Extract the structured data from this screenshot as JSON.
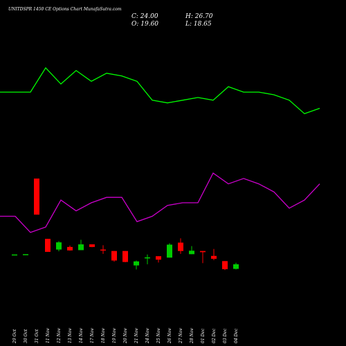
{
  "chart_data": {
    "type": "candlestick",
    "title": "UNITDSPR 1450  CE Options Chart MunafaSutra.com",
    "ohlc_text": {
      "close": "C: 24.00",
      "high": "H: 26.70",
      "open": "O: 19.60",
      "low": "L: 18.65"
    },
    "dates": [
      "29 Oct",
      "30 Oct",
      "31 Oct",
      "11 Nov",
      "12 Nov",
      "13 Nov",
      "14 Nov",
      "17 Nov",
      "18 Nov",
      "19 Nov",
      "20 Nov",
      "21 Nov",
      "24 Nov",
      "25 Nov",
      "26 Nov",
      "27 Nov",
      "28 Nov",
      "01 Dec",
      "02 Dec",
      "03 Dec",
      "04 Dec"
    ],
    "candles": [
      {
        "o": 21.7,
        "h": 21.7,
        "l": 21.7,
        "c": 21.7,
        "color": "#00cc00"
      },
      {
        "o": 21.8,
        "h": 21.8,
        "l": 21.8,
        "c": 21.8,
        "color": "#00cc00"
      },
      {
        "o": 48.0,
        "h": 48.0,
        "l": 35.5,
        "c": 35.5,
        "color": "#ff0000"
      },
      {
        "o": 27.1,
        "h": 27.1,
        "l": 22.6,
        "c": 22.6,
        "color": "#ff0000"
      },
      {
        "o": 23.4,
        "h": 26.3,
        "l": 22.8,
        "c": 25.9,
        "color": "#00cc00"
      },
      {
        "o": 24.3,
        "h": 24.8,
        "l": 23.0,
        "c": 23.1,
        "color": "#ff0000"
      },
      {
        "o": 23.2,
        "h": 26.8,
        "l": 23.2,
        "c": 25.2,
        "color": "#00cc00"
      },
      {
        "o": 25.2,
        "h": 25.2,
        "l": 24.2,
        "c": 24.3,
        "color": "#ff0000"
      },
      {
        "o": 23.4,
        "h": 24.9,
        "l": 21.9,
        "c": 23.1,
        "color": "#ff0000"
      },
      {
        "o": 22.9,
        "h": 22.9,
        "l": 19.2,
        "c": 19.6,
        "color": "#ff0000"
      },
      {
        "o": 22.9,
        "h": 22.9,
        "l": 19.0,
        "c": 19.1,
        "color": "#ff0000"
      },
      {
        "o": 17.9,
        "h": 19.6,
        "l": 16.5,
        "c": 19.3,
        "color": "#00cc00"
      },
      {
        "o": 20.5,
        "h": 21.7,
        "l": 18.3,
        "c": 20.7,
        "color": "#00cc00"
      },
      {
        "o": 21.1,
        "h": 21.1,
        "l": 18.9,
        "c": 19.9,
        "color": "#ff0000"
      },
      {
        "o": 20.6,
        "h": 25.6,
        "l": 20.6,
        "c": 25.1,
        "color": "#00cc00"
      },
      {
        "o": 25.8,
        "h": 27.3,
        "l": 21.9,
        "c": 22.9,
        "color": "#ff0000"
      },
      {
        "o": 21.8,
        "h": 24.6,
        "l": 21.8,
        "c": 23.0,
        "color": "#00cc00"
      },
      {
        "o": 22.9,
        "h": 22.9,
        "l": 18.7,
        "c": 22.5,
        "color": "#ff0000"
      },
      {
        "o": 21.2,
        "h": 23.6,
        "l": 19.7,
        "c": 20.2,
        "color": "#ff0000"
      },
      {
        "o": 19.4,
        "h": 19.4,
        "l": 16.3,
        "c": 16.6,
        "color": "#ff0000"
      },
      {
        "o": 16.7,
        "h": 18.8,
        "l": 16.5,
        "c": 18.3,
        "color": "#00cc00"
      }
    ],
    "price_line_green": [
      124,
      124,
      124,
      133,
      127,
      132,
      128,
      131,
      130,
      128,
      121,
      120,
      121,
      122,
      121,
      126,
      124,
      124,
      123,
      121,
      116,
      118
    ],
    "price_line_purple": [
      78,
      78,
      72,
      74,
      84,
      80,
      83,
      85,
      85,
      76,
      78,
      82,
      83,
      83,
      94,
      90,
      92,
      90,
      87,
      81,
      84,
      90
    ],
    "colors": {
      "up": "#00cc00",
      "down": "#ff0000",
      "line_top": "#00ff00",
      "line_bottom": "#cc00cc",
      "background": "#000000",
      "text": "#ffffff"
    }
  }
}
